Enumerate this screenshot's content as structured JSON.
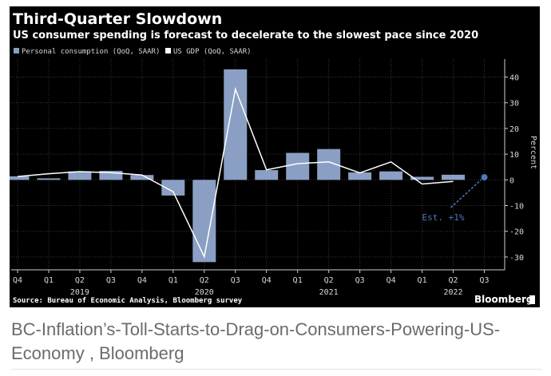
{
  "chart_data": {
    "type": "bar+line",
    "title": "Third-Quarter Slowdown",
    "subtitle": "US consumer spending is forecast to decelerate to the slowest pace since 2020",
    "ylabel": "Percent",
    "ylim": [
      -35,
      47
    ],
    "yticks": [
      40,
      30,
      20,
      10,
      0,
      -10,
      -20,
      -30
    ],
    "categories": [
      "Q4",
      "Q1",
      "Q2",
      "Q3",
      "Q4",
      "Q1",
      "Q2",
      "Q3",
      "Q4",
      "Q1",
      "Q2",
      "Q3",
      "Q4",
      "Q1",
      "Q2",
      "Q3"
    ],
    "year_labels": [
      {
        "label": "2019",
        "index": 2
      },
      {
        "label": "2020",
        "index": 6
      },
      {
        "label": "2021",
        "index": 10
      },
      {
        "label": "2022",
        "index": 14
      }
    ],
    "legend_position": "top-left",
    "grid": true,
    "series": [
      {
        "name": "Personal consumption (QoQ, SAAR)",
        "type": "bar",
        "color": "#8a9fc3",
        "values": [
          1.4,
          0.6,
          3.3,
          3.5,
          1.9,
          -6.1,
          -32.0,
          43.0,
          3.8,
          10.5,
          12.0,
          2.9,
          3.3,
          1.2,
          2.0,
          null
        ]
      },
      {
        "name": "US GDP (QoQ, SAAR)",
        "type": "line",
        "color": "#ffffff",
        "values": [
          1.3,
          2.4,
          3.2,
          2.8,
          1.9,
          -4.6,
          -29.9,
          35.3,
          3.9,
          6.3,
          7.0,
          2.7,
          7.0,
          -1.6,
          -0.6,
          null
        ]
      }
    ],
    "forecast": {
      "category_index": 15,
      "value": 1,
      "label": "Est. +1%",
      "color": "#4f79b7"
    },
    "source": "Source: Bureau of Economic Analysis, Bloomberg survey",
    "brand": "Bloomberg"
  },
  "caption": "BC-Inflation’s-Toll-Starts-to-Drag-on-Consumers-Powering-US-Economy , Bloomberg"
}
